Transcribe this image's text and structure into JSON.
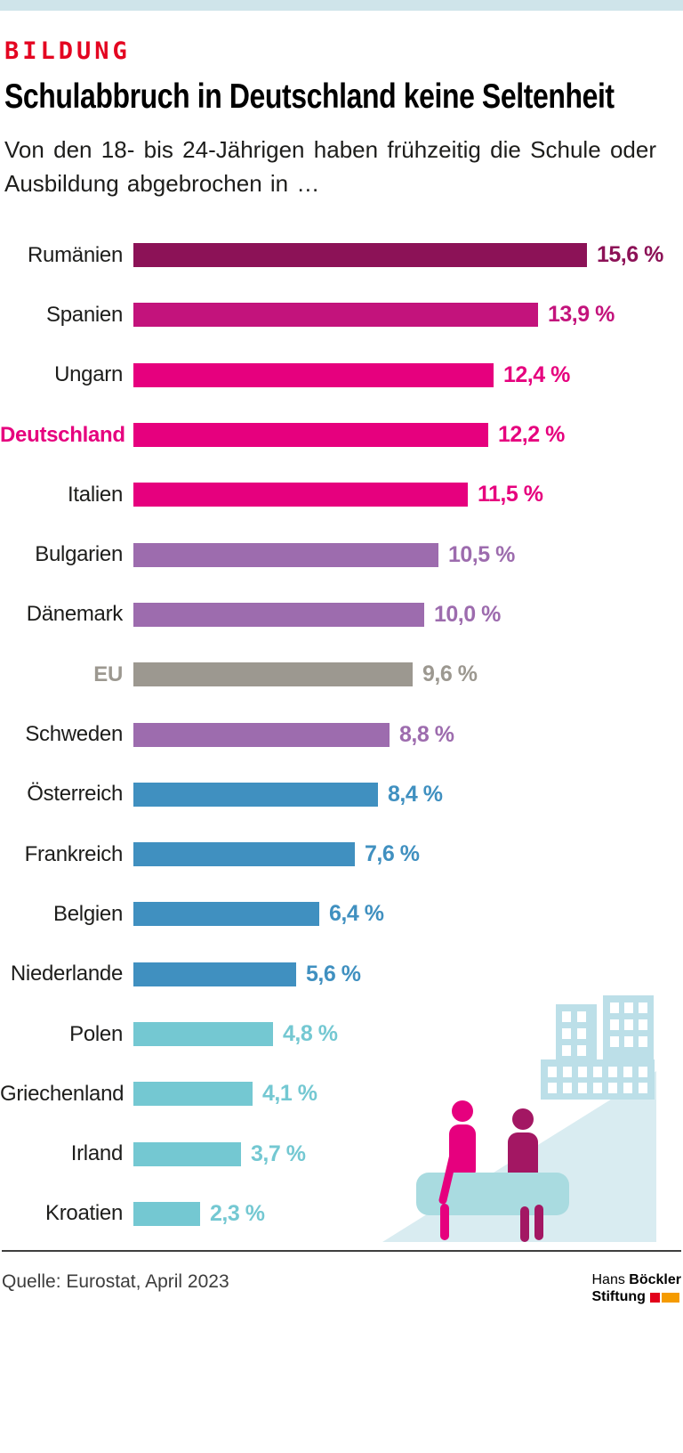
{
  "page": {
    "top_strip_color": "#cfe4ea"
  },
  "header": {
    "kicker": "BILDUNG",
    "kicker_color": "#e40521",
    "title": "Schulabbruch in Deutschland keine Seltenheit",
    "subtitle": "Von den 18- bis 24-Jährigen haben frühzeitig die Schule oder Ausbildung abgebrochen in …"
  },
  "chart_data": {
    "type": "bar",
    "orientation": "horizontal",
    "unit": "%",
    "xlim": [
      0,
      16
    ],
    "grid": false,
    "legend": false,
    "categories": [
      "Rumänien",
      "Spanien",
      "Ungarn",
      "Deutschland",
      "Italien",
      "Bulgarien",
      "Dänemark",
      "EU",
      "Schweden",
      "Österreich",
      "Frankreich",
      "Belgien",
      "Niederlande",
      "Polen",
      "Griechenland",
      "Irland",
      "Kroatien"
    ],
    "values": [
      15.6,
      13.9,
      12.4,
      12.2,
      11.5,
      10.5,
      10.0,
      9.6,
      8.8,
      8.4,
      7.6,
      6.4,
      5.6,
      4.8,
      4.1,
      3.7,
      2.3
    ],
    "rows": [
      {
        "label": "Rumänien",
        "value": 15.6,
        "display": "15,6 %",
        "color": "#8c1257"
      },
      {
        "label": "Spanien",
        "value": 13.9,
        "display": "13,9 %",
        "color": "#c3137c"
      },
      {
        "label": "Ungarn",
        "value": 12.4,
        "display": "12,4 %",
        "color": "#e6007e"
      },
      {
        "label": "Deutschland",
        "value": 12.2,
        "display": "12,2 %",
        "color": "#e6007e",
        "label_color": "#e6007e",
        "label_bold": true
      },
      {
        "label": "Italien",
        "value": 11.5,
        "display": "11,5 %",
        "color": "#e6007e"
      },
      {
        "label": "Bulgarien",
        "value": 10.5,
        "display": "10,5 %",
        "color": "#9d6cae"
      },
      {
        "label": "Dänemark",
        "value": 10.0,
        "display": "10,0 %",
        "color": "#9d6cae"
      },
      {
        "label": "EU",
        "value": 9.6,
        "display": "9,6 %",
        "color": "#9c9890",
        "label_color": "#9c9890",
        "label_bold": true
      },
      {
        "label": "Schweden",
        "value": 8.8,
        "display": "8,8 %",
        "color": "#9d6cae"
      },
      {
        "label": "Österreich",
        "value": 8.4,
        "display": "8,4 %",
        "color": "#4090c0"
      },
      {
        "label": "Frankreich",
        "value": 7.6,
        "display": "7,6 %",
        "color": "#4090c0"
      },
      {
        "label": "Belgien",
        "value": 6.4,
        "display": "6,4 %",
        "color": "#4090c0"
      },
      {
        "label": "Niederlande",
        "value": 5.6,
        "display": "5,6 %",
        "color": "#4090c0"
      },
      {
        "label": "Polen",
        "value": 4.8,
        "display": "4,8 %",
        "color": "#74c8d2"
      },
      {
        "label": "Griechenland",
        "value": 4.1,
        "display": "4,1 %",
        "color": "#74c8d2"
      },
      {
        "label": "Irland",
        "value": 3.7,
        "display": "3,7 %",
        "color": "#74c8d2"
      },
      {
        "label": "Kroatien",
        "value": 2.3,
        "display": "2,3 %",
        "color": "#74c8d2"
      }
    ]
  },
  "footer": {
    "source": "Quelle: Eurostat, April 2023",
    "logo": {
      "line1_normal": "Hans",
      "line1_bold": "Böckler",
      "line2_bold": "Stiftung",
      "mark_red": "#e2001a",
      "mark_orange": "#f59b00"
    }
  }
}
